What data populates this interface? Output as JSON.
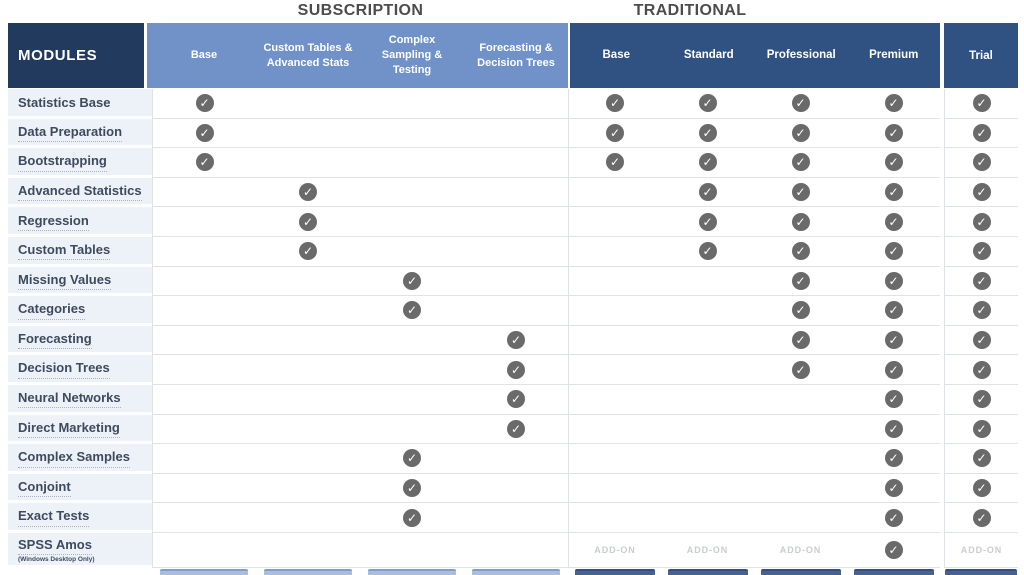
{
  "header": {
    "modules_label": "MODULES",
    "subscription": {
      "title": "SUBSCRIPTION",
      "columns": [
        "Base",
        "Custom Tables & Advanced Stats",
        "Complex Sampling & Testing",
        "Forecasting & Decision Trees"
      ]
    },
    "traditional": {
      "title": "TRADITIONAL",
      "columns": [
        "Base",
        "Standard",
        "Professional",
        "Premium"
      ]
    },
    "trial_label": "Trial"
  },
  "check_icon": "✓",
  "addon_label": "ADD-ON",
  "rows": [
    {
      "label": "Statistics Base",
      "note": "",
      "underlined": false,
      "cells": [
        "check",
        "",
        "",
        "",
        "check",
        "check",
        "check",
        "check",
        "check"
      ]
    },
    {
      "label": "Data Preparation",
      "note": "",
      "underlined": true,
      "cells": [
        "check",
        "",
        "",
        "",
        "check",
        "check",
        "check",
        "check",
        "check"
      ]
    },
    {
      "label": "Bootstrapping",
      "note": "",
      "underlined": true,
      "cells": [
        "check",
        "",
        "",
        "",
        "check",
        "check",
        "check",
        "check",
        "check"
      ]
    },
    {
      "label": "Advanced Statistics",
      "note": "",
      "underlined": true,
      "cells": [
        "",
        "check",
        "",
        "",
        "",
        "check",
        "check",
        "check",
        "check"
      ]
    },
    {
      "label": "Regression",
      "note": "",
      "underlined": true,
      "cells": [
        "",
        "check",
        "",
        "",
        "",
        "check",
        "check",
        "check",
        "check"
      ]
    },
    {
      "label": "Custom Tables",
      "note": "",
      "underlined": true,
      "cells": [
        "",
        "check",
        "",
        "",
        "",
        "check",
        "check",
        "check",
        "check"
      ]
    },
    {
      "label": "Missing Values",
      "note": "",
      "underlined": true,
      "cells": [
        "",
        "",
        "check",
        "",
        "",
        "",
        "check",
        "check",
        "check"
      ]
    },
    {
      "label": "Categories",
      "note": "",
      "underlined": true,
      "cells": [
        "",
        "",
        "check",
        "",
        "",
        "",
        "check",
        "check",
        "check"
      ]
    },
    {
      "label": "Forecasting",
      "note": "",
      "underlined": true,
      "cells": [
        "",
        "",
        "",
        "check",
        "",
        "",
        "check",
        "check",
        "check"
      ]
    },
    {
      "label": "Decision Trees",
      "note": "",
      "underlined": true,
      "cells": [
        "",
        "",
        "",
        "check",
        "",
        "",
        "check",
        "check",
        "check"
      ]
    },
    {
      "label": "Neural Networks",
      "note": "",
      "underlined": true,
      "cells": [
        "",
        "",
        "",
        "check",
        "",
        "",
        "",
        "check",
        "check"
      ]
    },
    {
      "label": "Direct Marketing",
      "note": "",
      "underlined": true,
      "cells": [
        "",
        "",
        "",
        "check",
        "",
        "",
        "",
        "check",
        "check"
      ]
    },
    {
      "label": "Complex Samples",
      "note": "",
      "underlined": true,
      "cells": [
        "",
        "",
        "check",
        "",
        "",
        "",
        "",
        "check",
        "check"
      ]
    },
    {
      "label": "Conjoint",
      "note": "",
      "underlined": true,
      "cells": [
        "",
        "",
        "check",
        "",
        "",
        "",
        "",
        "check",
        "check"
      ]
    },
    {
      "label": "Exact Tests",
      "note": "",
      "underlined": true,
      "cells": [
        "",
        "",
        "check",
        "",
        "",
        "",
        "",
        "check",
        "check"
      ]
    },
    {
      "label": "SPSS Amos",
      "note": "(Windows Desktop Only)",
      "underlined": true,
      "cells": [
        "",
        "",
        "",
        "",
        "addon",
        "addon",
        "addon",
        "check",
        "addon"
      ]
    }
  ],
  "colors": {
    "modules_header_bg": "#223a5e",
    "subscription_header_bg": "#7092c9",
    "traditional_header_bg": "#2f5282",
    "label_cell_bg": "#edf1f8",
    "check_circle": "#6a6a6a",
    "addon_text": "#c9ccd1",
    "button_light": "#aabdda",
    "button_dark": "#47628e"
  }
}
